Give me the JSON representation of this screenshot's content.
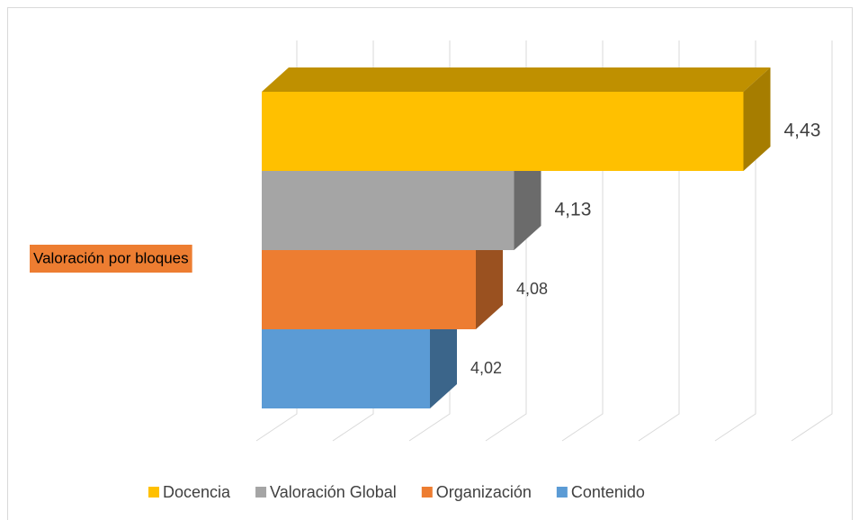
{
  "chart_data": {
    "type": "bar3d",
    "orientation": "horizontal",
    "categories": [
      "Valoración por bloques"
    ],
    "series": [
      {
        "name": "Docencia",
        "color": "#ffc000",
        "values": [
          4.43
        ],
        "value_labels": [
          "4,43"
        ]
      },
      {
        "name": "Valoración Global",
        "color": "#a5a5a5",
        "values": [
          4.13
        ],
        "value_labels": [
          "4,13"
        ]
      },
      {
        "name": "Organización",
        "color": "#ed7d31",
        "values": [
          4.08
        ],
        "value_labels": [
          "4,08"
        ]
      },
      {
        "name": "Contenido",
        "color": "#5b9bd5",
        "values": [
          4.02
        ],
        "value_labels": [
          "4,02"
        ]
      }
    ],
    "category_label_color": "#ed7d31",
    "xlim": [
      3.8,
      4.5
    ],
    "xticks": [
      3.8,
      3.9,
      4.0,
      4.1,
      4.2,
      4.3,
      4.4,
      4.5
    ],
    "grid": true,
    "legend": "bottom"
  }
}
